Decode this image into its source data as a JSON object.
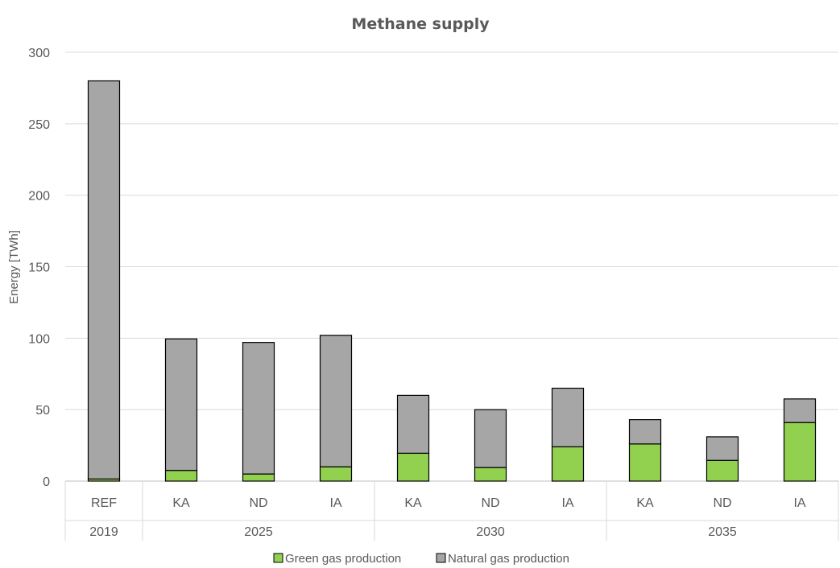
{
  "chart_data": {
    "type": "bar",
    "stacked": true,
    "title": "Methane supply",
    "ylabel": "Energy [TWh]",
    "xlabel": "",
    "ylim": [
      0,
      300
    ],
    "yticks": [
      0,
      50,
      100,
      150,
      200,
      250,
      300
    ],
    "grid": true,
    "legend_position": "bottom",
    "categories": [
      "REF",
      "KA",
      "ND",
      "IA",
      "KA",
      "ND",
      "IA",
      "KA",
      "ND",
      "IA"
    ],
    "groups": [
      {
        "label": "2019",
        "count": 1
      },
      {
        "label": "2025",
        "count": 3
      },
      {
        "label": "2030",
        "count": 3
      },
      {
        "label": "2035",
        "count": 3
      }
    ],
    "series": [
      {
        "name": "Green gas production",
        "color": "#92d050",
        "values": [
          1.5,
          7.5,
          5,
          10,
          19.5,
          9.5,
          24,
          26,
          14.5,
          41
        ]
      },
      {
        "name": "Natural gas production",
        "color": "#a6a6a6",
        "values": [
          278.5,
          92,
          92,
          92,
          40.5,
          40.5,
          41,
          17,
          16.5,
          16.5
        ]
      }
    ]
  }
}
